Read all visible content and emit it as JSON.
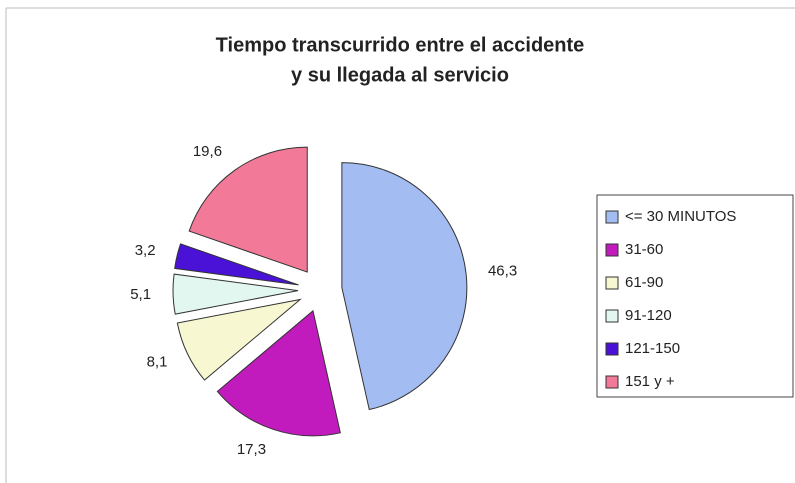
{
  "chart_data": {
    "type": "pie",
    "title": [
      "Tiempo transcurrido entre el accidente",
      "y su llegada al servicio"
    ],
    "categories": [
      "<= 30 MINUTOS",
      "31-60",
      "61-90",
      "91-120",
      "121-150",
      "151 y +"
    ],
    "values": [
      46.3,
      17.3,
      8.1,
      5.1,
      3.2,
      19.6
    ],
    "value_labels": [
      "46,3",
      "17,3",
      "8,1",
      "5,1",
      "3,2",
      "19,6"
    ],
    "colors": [
      "#a3bcf2",
      "#c21bbd",
      "#f7f7d2",
      "#e2f7f0",
      "#4a12d6",
      "#f27a98"
    ],
    "legend": "right"
  }
}
